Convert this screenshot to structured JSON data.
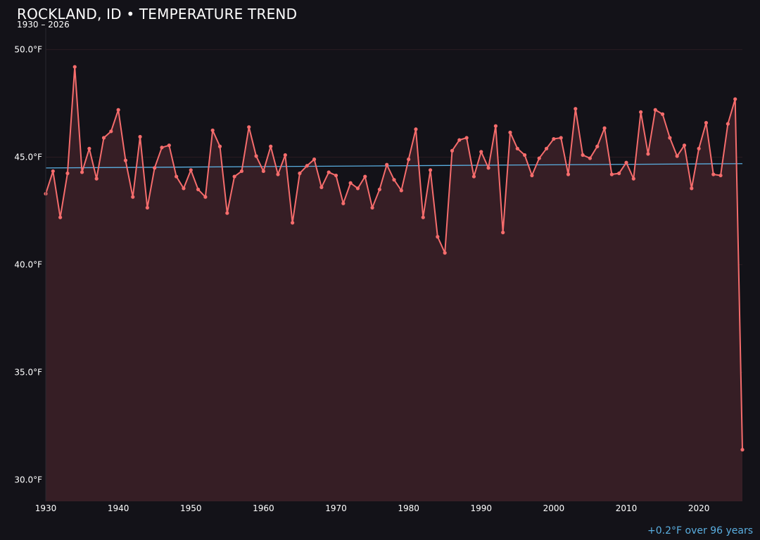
{
  "title": "ROCKLAND, ID • TEMPERATURE TREND",
  "subtitle": "1930 – 2026",
  "trend_note": "+0.2°F over 96 years",
  "colors": {
    "background": "#131218",
    "line": "#f56c6c",
    "fill": "#361e25",
    "trend": "#5aaee0",
    "grid": "#2a1b21",
    "text": "#ffffff"
  },
  "chart_data": {
    "type": "line",
    "title": "ROCKLAND, ID • TEMPERATURE TREND",
    "subtitle": "1930 – 2026",
    "xlabel": "",
    "ylabel": "",
    "xlim": [
      1930,
      2026
    ],
    "ylim": [
      29.0,
      51.0
    ],
    "x_ticks": [
      1930,
      1940,
      1950,
      1960,
      1970,
      1980,
      1990,
      2000,
      2010,
      2020
    ],
    "x_tick_labels": [
      "1930",
      "1940",
      "1950",
      "1960",
      "1970",
      "1980",
      "1990",
      "2000",
      "2010",
      "2020"
    ],
    "y_ticks": [
      30,
      35,
      40,
      45,
      50
    ],
    "y_tick_labels": [
      "30.0°F",
      "35.0°F",
      "40.0°F",
      "45.0°F",
      "50.0°F"
    ],
    "grid": true,
    "legend": "none",
    "series": [
      {
        "x": [
          1930,
          1931,
          1932,
          1933,
          1934,
          1935,
          1936,
          1937,
          1938,
          1939,
          1940,
          1941,
          1942,
          1943,
          1944,
          1945,
          1946,
          1947,
          1948,
          1949,
          1950,
          1951,
          1952,
          1953,
          1954,
          1955,
          1956,
          1957,
          1958,
          1959,
          1960,
          1961,
          1962,
          1963,
          1964,
          1965,
          1966,
          1967,
          1968,
          1969,
          1970,
          1971,
          1972,
          1973,
          1974,
          1975,
          1976,
          1977,
          1978,
          1979,
          1980,
          1981,
          1982,
          1983,
          1984,
          1985,
          1986,
          1987,
          1988,
          1989,
          1990,
          1991,
          1992,
          1993,
          1994,
          1995,
          1996,
          1997,
          1998,
          1999,
          2000,
          2001,
          2002,
          2003,
          2004,
          2005,
          2006,
          2007,
          2008,
          2009,
          2010,
          2011,
          2012,
          2013,
          2014,
          2015,
          2016,
          2017,
          2018,
          2019,
          2020,
          2021,
          2022,
          2023,
          2024,
          2025,
          2026
        ],
        "values": [
          43.3,
          44.35,
          42.2,
          44.25,
          49.2,
          44.3,
          45.4,
          44.0,
          45.9,
          46.2,
          47.2,
          44.85,
          43.15,
          45.95,
          42.65,
          44.5,
          45.45,
          45.55,
          44.1,
          43.55,
          44.4,
          43.5,
          43.15,
          46.25,
          45.5,
          42.4,
          44.1,
          44.35,
          46.4,
          45.05,
          44.35,
          45.5,
          44.2,
          45.1,
          41.95,
          44.25,
          44.6,
          44.9,
          43.6,
          44.3,
          44.15,
          42.85,
          43.8,
          43.55,
          44.1,
          42.65,
          43.5,
          44.65,
          43.95,
          43.45,
          44.9,
          46.3,
          42.2,
          44.4,
          41.3,
          40.55,
          45.3,
          45.8,
          45.9,
          44.1,
          45.25,
          44.5,
          46.45,
          41.5,
          46.15,
          45.4,
          45.1,
          44.15,
          44.95,
          45.4,
          45.85,
          45.9,
          44.2,
          47.25,
          45.1,
          44.95,
          45.5,
          46.35,
          44.2,
          44.25,
          44.75,
          44.0,
          47.1,
          45.15,
          47.2,
          47.0,
          45.9,
          45.05,
          45.55,
          43.55,
          45.4,
          46.6,
          44.2,
          44.15,
          46.55,
          47.7,
          31.4
        ]
      }
    ],
    "trend_line": {
      "x": [
        1930,
        2026
      ],
      "values": [
        44.5,
        44.7
      ]
    }
  }
}
